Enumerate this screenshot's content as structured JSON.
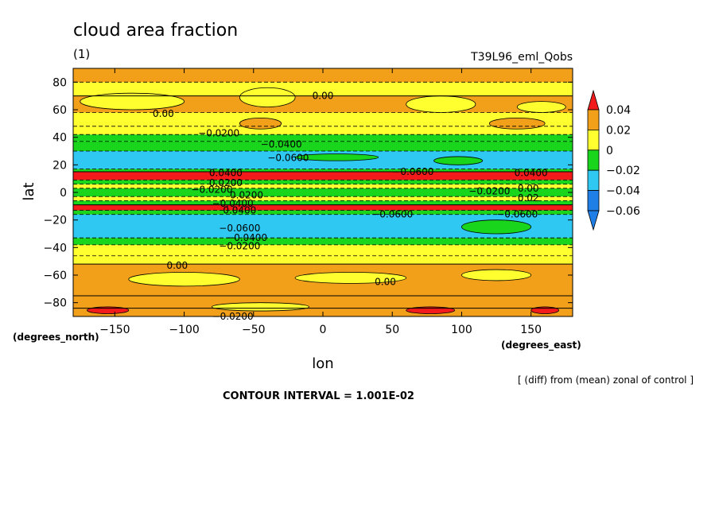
{
  "chart_data": {
    "type": "heatmap",
    "title": "cloud area fraction",
    "subtitle": "(1)",
    "run_label": "T39L96_eml_Qobs",
    "xlabel": "lon",
    "ylabel": "lat",
    "x_units": "(degrees_east)",
    "y_units": "(degrees_north)",
    "xlim": [
      -180,
      180
    ],
    "ylim": [
      -90,
      90
    ],
    "x_ticks": [
      -150,
      -100,
      -50,
      0,
      50,
      100,
      150
    ],
    "y_ticks": [
      -80,
      -60,
      -40,
      -20,
      0,
      20,
      40,
      60,
      80
    ],
    "footnote": "[ (diff) from (mean) zonal of control ]",
    "contour_interval_text": "CONTOUR INTERVAL = 1.001E-02",
    "colorbar": {
      "levels": [
        -0.06,
        -0.04,
        -0.02,
        0,
        0.02,
        0.04
      ],
      "level_labels": [
        "−0.06",
        "−0.04",
        "−0.02",
        "0",
        "0.02",
        "0.04"
      ],
      "colors": [
        "#1f7fe6",
        "#2fc8f2",
        "#19d61c",
        "#ffff2f",
        "#f2a01a",
        "#f21a1a"
      ]
    },
    "zonal_bands": [
      {
        "lat_min": -90,
        "lat_max": -84,
        "value": 0.01
      },
      {
        "lat_min": -84,
        "lat_max": -75,
        "value": 0.005
      },
      {
        "lat_min": -75,
        "lat_max": -52,
        "value": 0.005
      },
      {
        "lat_min": -52,
        "lat_max": -46,
        "value": -0.01
      },
      {
        "lat_min": -46,
        "lat_max": -38,
        "value": -0.01
      },
      {
        "lat_min": -38,
        "lat_max": -33,
        "value": -0.03
      },
      {
        "lat_min": -33,
        "lat_max": -16,
        "value": -0.05
      },
      {
        "lat_min": -16,
        "lat_max": -13,
        "value": -0.03
      },
      {
        "lat_min": -13,
        "lat_max": -9,
        "value": 0.05
      },
      {
        "lat_min": -9,
        "lat_max": -6,
        "value": -0.03
      },
      {
        "lat_min": -6,
        "lat_max": -3,
        "value": -0.01
      },
      {
        "lat_min": -3,
        "lat_max": 3,
        "value": -0.03
      },
      {
        "lat_min": 3,
        "lat_max": 6,
        "value": -0.01
      },
      {
        "lat_min": 6,
        "lat_max": 9,
        "value": -0.03
      },
      {
        "lat_min": 9,
        "lat_max": 15,
        "value": 0.05
      },
      {
        "lat_min": 15,
        "lat_max": 17,
        "value": -0.03
      },
      {
        "lat_min": 17,
        "lat_max": 30,
        "value": -0.05
      },
      {
        "lat_min": 30,
        "lat_max": 37,
        "value": -0.03
      },
      {
        "lat_min": 37,
        "lat_max": 42,
        "value": -0.03
      },
      {
        "lat_min": 42,
        "lat_max": 48,
        "value": -0.01
      },
      {
        "lat_min": 48,
        "lat_max": 58,
        "value": -0.01
      },
      {
        "lat_min": 58,
        "lat_max": 70,
        "value": 0.005
      },
      {
        "lat_min": 70,
        "lat_max": 80,
        "value": -0.01
      },
      {
        "lat_min": 80,
        "lat_max": 90,
        "value": 0.005
      }
    ],
    "patches": [
      {
        "lon_min": -175,
        "lon_max": -100,
        "lat_min": 60,
        "lat_max": 72,
        "value": -0.01
      },
      {
        "lon_min": -60,
        "lon_max": -20,
        "lat_min": 62,
        "lat_max": 76,
        "value": -0.01
      },
      {
        "lon_min": 60,
        "lon_max": 110,
        "lat_min": 58,
        "lat_max": 70,
        "value": -0.01
      },
      {
        "lon_min": 140,
        "lon_max": 175,
        "lat_min": 58,
        "lat_max": 66,
        "value": -0.01
      },
      {
        "lon_min": -60,
        "lon_max": -30,
        "lat_min": 46,
        "lat_max": 54,
        "value": 0.005
      },
      {
        "lon_min": 120,
        "lon_max": 160,
        "lat_min": 46,
        "lat_max": 54,
        "value": 0.005
      },
      {
        "lon_min": -140,
        "lon_max": -60,
        "lat_min": -68,
        "lat_max": -58,
        "value": -0.01
      },
      {
        "lon_min": -20,
        "lon_max": 60,
        "lat_min": -66,
        "lat_max": -58,
        "value": -0.01
      },
      {
        "lon_min": 100,
        "lon_max": 150,
        "lat_min": -64,
        "lat_max": -56,
        "value": -0.01
      },
      {
        "lon_min": -170,
        "lon_max": -140,
        "lat_min": -88,
        "lat_max": -83,
        "value": 0.03
      },
      {
        "lon_min": 60,
        "lon_max": 95,
        "lat_min": -88,
        "lat_max": -83,
        "value": 0.03
      },
      {
        "lon_min": 150,
        "lon_max": 170,
        "lat_min": -88,
        "lat_max": -83,
        "value": 0.03
      },
      {
        "lon_min": -80,
        "lon_max": -10,
        "lat_min": -86,
        "lat_max": -80,
        "value": -0.01
      },
      {
        "lon_min": 100,
        "lon_max": 150,
        "lat_min": -30,
        "lat_max": -20,
        "value": -0.03
      },
      {
        "lon_min": 80,
        "lon_max": 115,
        "lat_min": 20,
        "lat_max": 26,
        "value": -0.03
      },
      {
        "lon_min": -20,
        "lon_max": 40,
        "lat_min": 23,
        "lat_max": 28,
        "value": -0.03
      }
    ],
    "contour_labels": [
      {
        "text": "0.00",
        "lon": -115,
        "lat": 57
      },
      {
        "text": "0.00",
        "lon": 0,
        "lat": 70
      },
      {
        "text": "−0.0200",
        "lon": -75,
        "lat": 43
      },
      {
        "text": "−0.0400",
        "lon": -30,
        "lat": 35
      },
      {
        "text": "−0.0600",
        "lon": -25,
        "lat": 25
      },
      {
        "text": "−0.0600",
        "lon": 65,
        "lat": 15
      },
      {
        "text": "0.0400",
        "lon": 150,
        "lat": 14
      },
      {
        "text": "−0.0200",
        "lon": 120,
        "lat": 1
      },
      {
        "text": "0.00",
        "lon": 148,
        "lat": 3
      },
      {
        "text": "0.02",
        "lon": 148,
        "lat": -4
      },
      {
        "text": "−0.0600",
        "lon": 140,
        "lat": -16
      },
      {
        "text": "−0.0600",
        "lon": 50,
        "lat": -16
      },
      {
        "text": "−0.0600",
        "lon": -60,
        "lat": -26
      },
      {
        "text": "−0.0400",
        "lon": -55,
        "lat": -33
      },
      {
        "text": "−0.0200",
        "lon": -60,
        "lat": -39
      },
      {
        "text": "0.00",
        "lon": -105,
        "lat": -53
      },
      {
        "text": "0.00",
        "lon": 45,
        "lat": -65
      },
      {
        "text": "−0.0200",
        "lon": -65,
        "lat": -90
      },
      {
        "text": "0.0400",
        "lon": -70,
        "lat": 14
      },
      {
        "text": "0.0200",
        "lon": -70,
        "lat": 7
      },
      {
        "text": "−0.0200",
        "lon": -80,
        "lat": 2
      },
      {
        "text": "0.0200",
        "lon": -55,
        "lat": -2
      },
      {
        "text": "−0.0400",
        "lon": -65,
        "lat": -8
      },
      {
        "text": "0.0400",
        "lon": -60,
        "lat": -13
      }
    ]
  }
}
